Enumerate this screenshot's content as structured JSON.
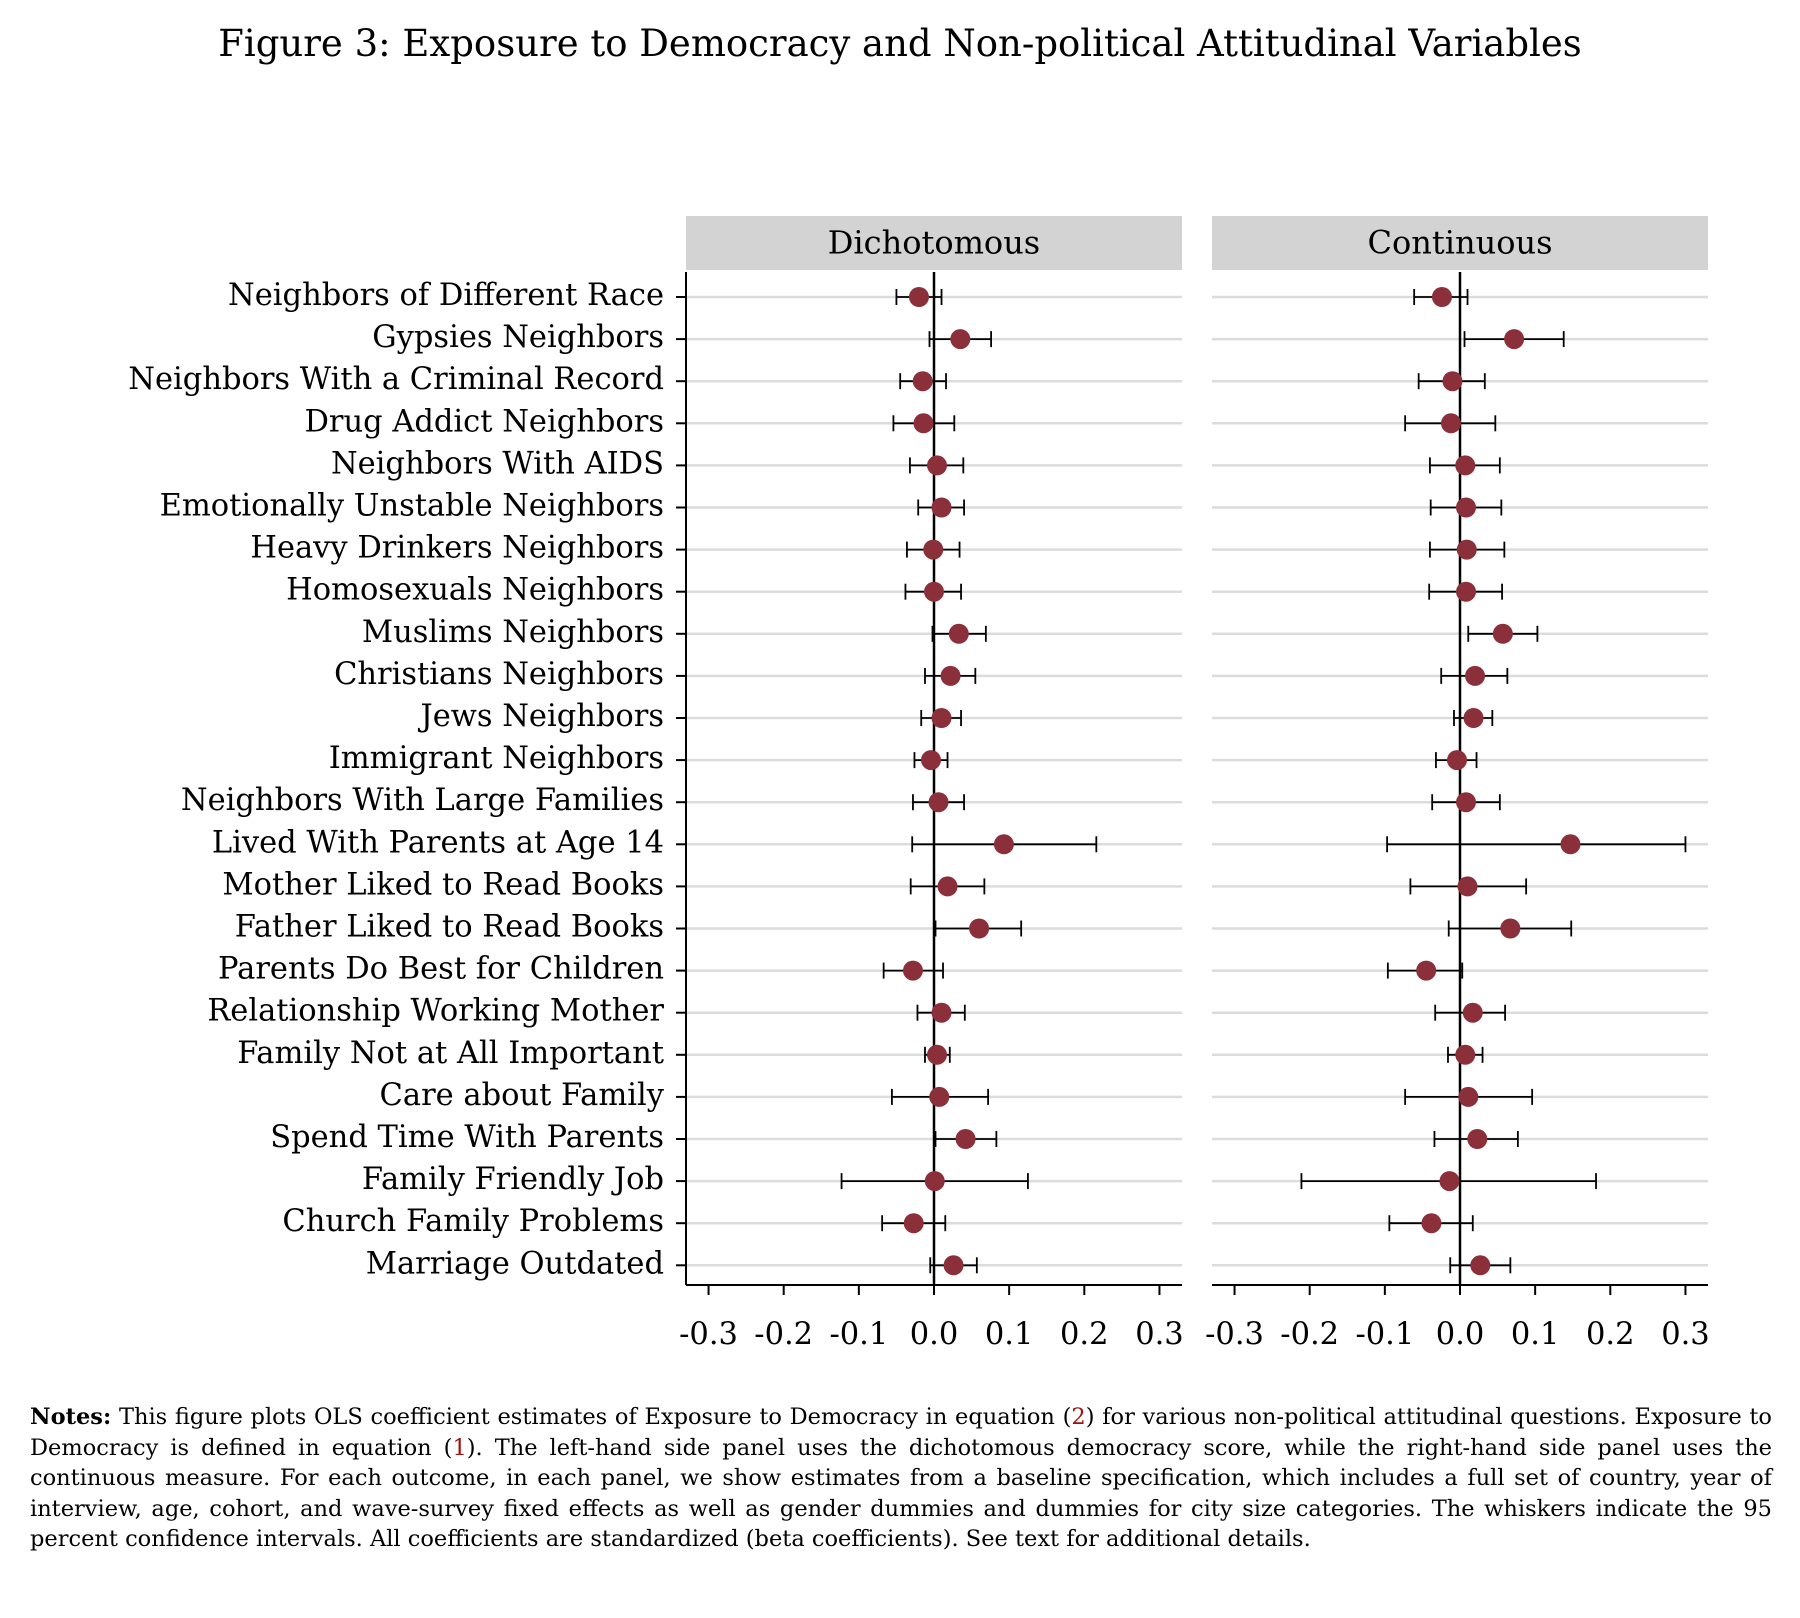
{
  "figure_title": "Figure 3: Exposure to Democracy and Non-political Attitudinal Variables",
  "notes": {
    "label": "Notes:",
    "part1": " This figure plots OLS coefficient estimates of Exposure to Democracy in equation (",
    "ref1": "2",
    "part2": ") for various non-political attitudinal questions. Exposure to Democracy is defined in equation (",
    "ref2": "1",
    "part3": "). The left-hand side panel uses the dichotomous democracy score, while the right-hand side panel uses the continuous measure. For each outcome, in each panel, we show estimates from a baseline specification, which includes a full set of country, year of interview, age, cohort, and wave-survey fixed effects as well as gender dummies and dummies for city size categories. The whiskers indicate the 95 percent confidence intervals. All coefficients are standardized (beta coefficients). See text for additional details."
  },
  "colors": {
    "marker": "#8b2f3a",
    "panel_header": "#d3d3d3",
    "gridline": "#dcdcdc"
  },
  "chart_data": {
    "type": "scatter",
    "subtype": "coefficient plot with 95% confidence interval whiskers",
    "categories": [
      "Neighbors of Different Race",
      "Gypsies Neighbors",
      "Neighbors With a Criminal Record",
      "Drug Addict Neighbors",
      "Neighbors With AIDS",
      "Emotionally Unstable Neighbors",
      "Heavy Drinkers Neighbors",
      "Homosexuals Neighbors",
      "Muslims Neighbors",
      "Christians Neighbors",
      "Jews Neighbors",
      "Immigrant Neighbors",
      "Neighbors With Large Families",
      "Lived With Parents at Age 14",
      "Mother Liked to Read Books",
      "Father Liked to Read Books",
      "Parents Do Best for Children",
      "Relationship Working Mother",
      "Family Not at All Important",
      "Care about Family",
      "Spend Time With Parents",
      "Family Friendly Job",
      "Church Family Problems",
      "Marriage Outdated"
    ],
    "xlim": [
      -0.33,
      0.33
    ],
    "xticks": [
      -0.3,
      -0.2,
      -0.1,
      0.0,
      0.1,
      0.2,
      0.3
    ],
    "xtick_labels": [
      "-0.3",
      "-0.2",
      "-0.1",
      "0.0",
      "0.1",
      "0.2",
      "0.3"
    ],
    "reference_line": 0,
    "grid": true,
    "panels": [
      {
        "title": "Dichotomous",
        "estimates": [
          -0.02,
          0.035,
          -0.015,
          -0.014,
          0.004,
          0.01,
          -0.001,
          0.0,
          0.033,
          0.022,
          0.01,
          -0.004,
          0.006,
          0.093,
          0.018,
          0.06,
          -0.028,
          0.01,
          0.004,
          0.007,
          0.042,
          0.001,
          -0.027,
          0.026
        ],
        "ci_low": [
          -0.05,
          -0.006,
          -0.045,
          -0.054,
          -0.032,
          -0.021,
          -0.036,
          -0.038,
          -0.002,
          -0.012,
          -0.017,
          -0.026,
          -0.028,
          -0.029,
          -0.031,
          0.002,
          -0.067,
          -0.022,
          -0.012,
          -0.056,
          0.002,
          -0.123,
          -0.069,
          -0.005
        ],
        "ci_high": [
          0.01,
          0.076,
          0.016,
          0.027,
          0.039,
          0.04,
          0.034,
          0.036,
          0.069,
          0.055,
          0.036,
          0.018,
          0.04,
          0.216,
          0.067,
          0.116,
          0.012,
          0.041,
          0.021,
          0.072,
          0.083,
          0.125,
          0.015,
          0.057
        ]
      },
      {
        "title": "Continuous",
        "estimates": [
          -0.024,
          0.072,
          -0.01,
          -0.012,
          0.007,
          0.008,
          0.009,
          0.008,
          0.057,
          0.02,
          0.018,
          -0.004,
          0.008,
          0.147,
          0.01,
          0.067,
          -0.045,
          0.017,
          0.007,
          0.011,
          0.023,
          -0.014,
          -0.038,
          0.027
        ],
        "ci_low": [
          -0.061,
          0.006,
          -0.055,
          -0.073,
          -0.04,
          -0.039,
          -0.04,
          -0.041,
          0.011,
          -0.025,
          -0.008,
          -0.032,
          -0.037,
          -0.097,
          -0.066,
          -0.015,
          -0.096,
          -0.033,
          -0.016,
          -0.073,
          -0.034,
          -0.211,
          -0.094,
          -0.013
        ],
        "ci_high": [
          0.01,
          0.138,
          0.033,
          0.047,
          0.053,
          0.055,
          0.059,
          0.056,
          0.103,
          0.063,
          0.043,
          0.022,
          0.053,
          0.3,
          0.088,
          0.148,
          0.003,
          0.06,
          0.03,
          0.096,
          0.077,
          0.181,
          0.017,
          0.067
        ]
      }
    ]
  }
}
